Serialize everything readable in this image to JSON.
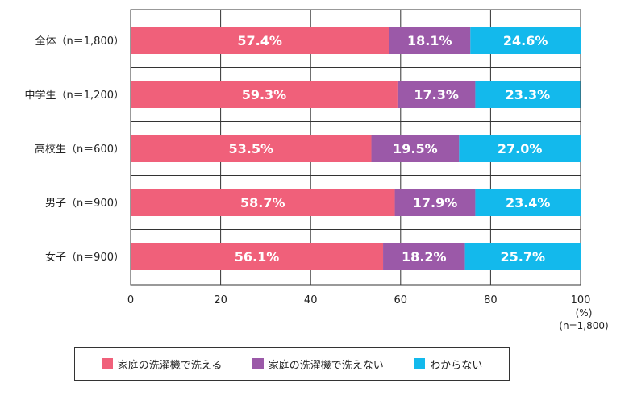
{
  "chart_data": {
    "type": "bar",
    "orientation": "horizontal",
    "stacked": true,
    "categories": [
      "全体（n＝1,800）",
      "中学生（n＝1,200）",
      "高校生（n＝600）",
      "男子（n＝900）",
      "女子（n＝900）"
    ],
    "series": [
      {
        "name": "家庭の洗濯機で洗える",
        "color": "#f0607a",
        "values": [
          57.4,
          59.3,
          53.5,
          58.7,
          56.1
        ],
        "labels": [
          "57.4%",
          "59.3%",
          "53.5%",
          "58.7%",
          "56.1%"
        ]
      },
      {
        "name": "家庭の洗濯機で洗えない",
        "color": "#9b59a8",
        "values": [
          18.1,
          17.3,
          19.5,
          17.9,
          18.2
        ],
        "labels": [
          "18.1%",
          "17.3%",
          "19.5%",
          "17.9%",
          "18.2%"
        ]
      },
      {
        "name": "わからない",
        "color": "#13b9ec",
        "values": [
          24.6,
          23.3,
          27.0,
          23.4,
          25.7
        ],
        "labels": [
          "24.6%",
          "23.3%",
          "27.0%",
          "23.4%",
          "25.7%"
        ]
      }
    ],
    "xlim": [
      0,
      100
    ],
    "x_ticks": [
      "0",
      "20",
      "40",
      "60",
      "80",
      "100"
    ],
    "x_unit": "(%)",
    "note": "(n=1,800)",
    "grid": true,
    "legend_position": "bottom"
  }
}
